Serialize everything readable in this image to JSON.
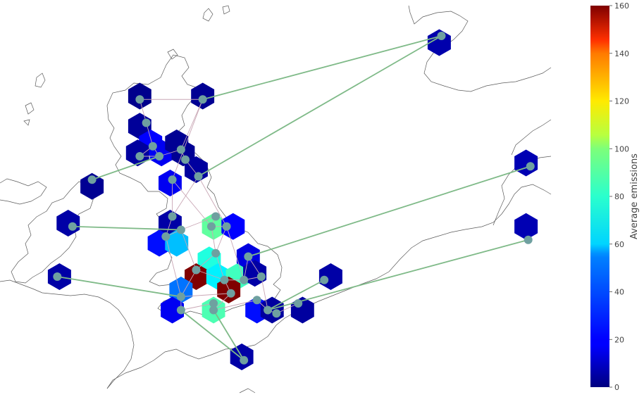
{
  "chart_data": {
    "type": "heatmap",
    "title": "",
    "colorbar": {
      "label": "Average emissions",
      "min": 0,
      "max": 160,
      "ticks": [
        0,
        20,
        40,
        60,
        80,
        100,
        120,
        140,
        160
      ],
      "colormap": "jet"
    },
    "cells": [
      {
        "lon": -5.3,
        "lat": 58.3,
        "value": 2
      },
      {
        "lon": -2.4,
        "lat": 58.3,
        "value": 3
      },
      {
        "lon": -5.3,
        "lat": 57.4,
        "value": 4
      },
      {
        "lon": -4.8,
        "lat": 56.9,
        "value": 20
      },
      {
        "lon": -4.3,
        "lat": 56.6,
        "value": 18
      },
      {
        "lon": -5.4,
        "lat": 56.6,
        "value": 5
      },
      {
        "lon": -3.6,
        "lat": 56.9,
        "value": 3
      },
      {
        "lon": -3.3,
        "lat": 56.6,
        "value": 3
      },
      {
        "lon": -2.7,
        "lat": 56.1,
        "value": 5
      },
      {
        "lon": -3.9,
        "lat": 55.7,
        "value": 18
      },
      {
        "lon": -7.5,
        "lat": 55.6,
        "value": 3
      },
      {
        "lon": -8.6,
        "lat": 54.5,
        "value": 6
      },
      {
        "lon": -3.9,
        "lat": 54.5,
        "value": 6
      },
      {
        "lon": -4.4,
        "lat": 53.9,
        "value": 22
      },
      {
        "lon": -3.6,
        "lat": 53.9,
        "value": 50
      },
      {
        "lon": -1.9,
        "lat": 54.4,
        "value": 75
      },
      {
        "lon": -1.0,
        "lat": 54.4,
        "value": 20
      },
      {
        "lon": -2.1,
        "lat": 53.4,
        "value": 65
      },
      {
        "lon": -2.7,
        "lat": 52.9,
        "value": 160
      },
      {
        "lon": -1.7,
        "lat": 52.9,
        "value": 58
      },
      {
        "lon": -0.8,
        "lat": 52.9,
        "value": 70
      },
      {
        "lon": -0.3,
        "lat": 53.5,
        "value": 15
      },
      {
        "lon": 0.0,
        "lat": 53.0,
        "value": 6
      },
      {
        "lon": -1.2,
        "lat": 52.5,
        "value": 160
      },
      {
        "lon": -3.4,
        "lat": 52.5,
        "value": 38
      },
      {
        "lon": -3.8,
        "lat": 51.9,
        "value": 18
      },
      {
        "lon": -1.9,
        "lat": 51.9,
        "value": 72
      },
      {
        "lon": 0.1,
        "lat": 51.9,
        "value": 22
      },
      {
        "lon": 0.8,
        "lat": 51.9,
        "value": 5
      },
      {
        "lon": 2.2,
        "lat": 51.9,
        "value": 5
      },
      {
        "lon": 3.5,
        "lat": 52.9,
        "value": 6
      },
      {
        "lon": -9.0,
        "lat": 52.9,
        "value": 6
      },
      {
        "lon": -0.6,
        "lat": 50.5,
        "value": 6
      },
      {
        "lon": 8.5,
        "lat": 59.9,
        "value": 7
      },
      {
        "lon": 12.5,
        "lat": 56.3,
        "value": 8
      },
      {
        "lon": 12.5,
        "lat": 54.4,
        "value": 8
      }
    ],
    "nodes": [
      {
        "lon": -5.3,
        "lat": 58.2
      },
      {
        "lon": -2.4,
        "lat": 58.2
      },
      {
        "lon": -5.0,
        "lat": 57.5
      },
      {
        "lon": -4.7,
        "lat": 56.8
      },
      {
        "lon": -5.3,
        "lat": 56.5
      },
      {
        "lon": -4.4,
        "lat": 56.5
      },
      {
        "lon": -3.4,
        "lat": 56.7
      },
      {
        "lon": -3.2,
        "lat": 56.4
      },
      {
        "lon": -2.6,
        "lat": 55.9
      },
      {
        "lon": -3.8,
        "lat": 55.8
      },
      {
        "lon": -7.5,
        "lat": 55.8
      },
      {
        "lon": -8.4,
        "lat": 54.4
      },
      {
        "lon": -3.8,
        "lat": 54.7
      },
      {
        "lon": -4.1,
        "lat": 54.1
      },
      {
        "lon": -3.4,
        "lat": 54.3
      },
      {
        "lon": -1.8,
        "lat": 54.7
      },
      {
        "lon": -2.0,
        "lat": 54.4
      },
      {
        "lon": -1.3,
        "lat": 54.4
      },
      {
        "lon": -1.8,
        "lat": 53.6
      },
      {
        "lon": -2.7,
        "lat": 53.1
      },
      {
        "lon": -1.4,
        "lat": 52.8
      },
      {
        "lon": -0.5,
        "lat": 52.8
      },
      {
        "lon": -0.3,
        "lat": 53.5
      },
      {
        "lon": 0.3,
        "lat": 52.9
      },
      {
        "lon": -1.1,
        "lat": 52.4
      },
      {
        "lon": -3.4,
        "lat": 52.3
      },
      {
        "lon": -3.4,
        "lat": 51.9
      },
      {
        "lon": -1.9,
        "lat": 52.1
      },
      {
        "lon": -1.9,
        "lat": 51.9
      },
      {
        "lon": 0.1,
        "lat": 52.2
      },
      {
        "lon": 0.6,
        "lat": 51.9
      },
      {
        "lon": 1.0,
        "lat": 51.8
      },
      {
        "lon": 2.0,
        "lat": 52.1
      },
      {
        "lon": 3.2,
        "lat": 52.8
      },
      {
        "lon": -9.1,
        "lat": 52.9
      },
      {
        "lon": -0.5,
        "lat": 50.4
      },
      {
        "lon": 8.6,
        "lat": 60.1
      },
      {
        "lon": 12.7,
        "lat": 56.2
      },
      {
        "lon": 12.6,
        "lat": 54.0
      }
    ],
    "links_ac": [
      [
        0,
        1
      ],
      [
        0,
        2
      ],
      [
        2,
        3
      ],
      [
        3,
        4
      ],
      [
        3,
        5
      ],
      [
        4,
        5
      ],
      [
        5,
        6
      ],
      [
        6,
        7
      ],
      [
        7,
        8
      ],
      [
        1,
        6
      ],
      [
        1,
        9
      ],
      [
        9,
        12
      ],
      [
        8,
        12
      ],
      [
        12,
        13
      ],
      [
        13,
        14
      ],
      [
        14,
        15
      ],
      [
        15,
        16
      ],
      [
        16,
        17
      ],
      [
        9,
        16
      ],
      [
        8,
        17
      ],
      [
        16,
        18
      ],
      [
        17,
        18
      ],
      [
        18,
        19
      ],
      [
        18,
        20
      ],
      [
        19,
        20
      ],
      [
        20,
        21
      ],
      [
        21,
        22
      ],
      [
        22,
        23
      ],
      [
        21,
        23
      ],
      [
        20,
        24
      ],
      [
        19,
        25
      ],
      [
        24,
        25
      ],
      [
        25,
        26
      ],
      [
        26,
        27
      ],
      [
        27,
        28
      ],
      [
        24,
        28
      ],
      [
        28,
        29
      ],
      [
        29,
        30
      ],
      [
        30,
        31
      ],
      [
        31,
        32
      ],
      [
        23,
        30
      ],
      [
        17,
        21
      ],
      [
        14,
        19
      ],
      [
        13,
        25
      ]
    ],
    "links_dc": [
      [
        1,
        36
      ],
      [
        8,
        36
      ],
      [
        10,
        5
      ],
      [
        11,
        14
      ],
      [
        34,
        25
      ],
      [
        26,
        35
      ],
      [
        28,
        35
      ],
      [
        22,
        37
      ],
      [
        30,
        33
      ],
      [
        30,
        38
      ]
    ]
  },
  "colors": {
    "ac_line": "#c9a7b5",
    "dc_line": "#7fba88",
    "node": "#6fa0a0",
    "coastline": "#5a5a5a",
    "text": "#444444"
  }
}
